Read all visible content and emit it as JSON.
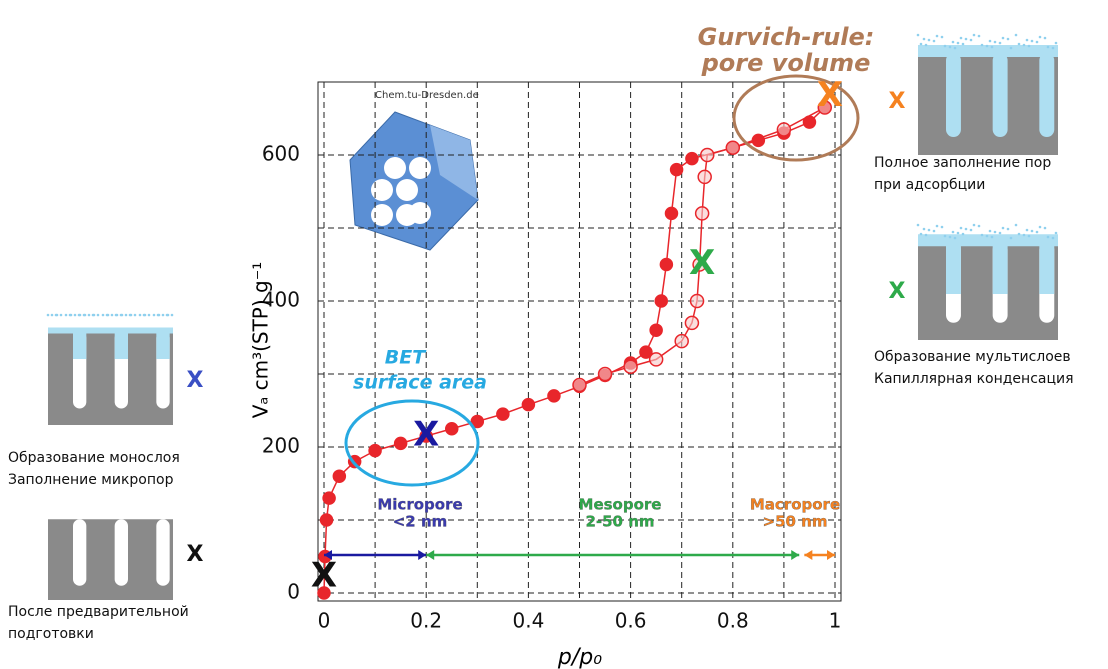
{
  "chart_data": {
    "type": "scatter",
    "xlabel": "p/p₀",
    "ylabel": "Vₐ cm³(STP) g⁻¹",
    "xlim": [
      0,
      1
    ],
    "ylim": [
      0,
      700
    ],
    "xticks": [
      0,
      0.2,
      0.4,
      0.6,
      0.8,
      1
    ],
    "yticks": [
      0,
      200,
      400,
      600
    ],
    "xminor": [
      0.1,
      0.3,
      0.5,
      0.7,
      0.9
    ],
    "yminor": [
      100,
      300,
      500,
      700
    ],
    "grid": true,
    "series": [
      {
        "color": "#e8262b",
        "marker": "filled",
        "x": [
          0,
          0.002,
          0.005,
          0.01,
          0.03,
          0.06,
          0.1,
          0.15,
          0.2,
          0.25,
          0.3,
          0.35,
          0.4,
          0.45,
          0.5,
          0.55,
          0.6,
          0.63,
          0.65,
          0.66,
          0.67,
          0.68,
          0.69,
          0.72,
          0.8,
          0.85,
          0.9,
          0.95,
          0.98
        ],
        "values": [
          0,
          50,
          100,
          130,
          160,
          180,
          195,
          205,
          215,
          225,
          235,
          245,
          258,
          270,
          283,
          298,
          315,
          330,
          360,
          400,
          450,
          520,
          580,
          595,
          610,
          620,
          630,
          645,
          665
        ]
      },
      {
        "color": "#e8262b",
        "marker": "open",
        "x": [
          0.98,
          0.9,
          0.8,
          0.75,
          0.745,
          0.74,
          0.735,
          0.73,
          0.72,
          0.7,
          0.65,
          0.6,
          0.55,
          0.5
        ],
        "values": [
          665,
          635,
          610,
          600,
          570,
          520,
          450,
          400,
          370,
          345,
          320,
          310,
          300,
          285
        ]
      }
    ],
    "markers": [
      {
        "x": 0,
        "y": 22,
        "label": "X",
        "color": "#111111"
      },
      {
        "x": 0.2,
        "y": 215,
        "label": "X",
        "color": "#1a1aa0"
      },
      {
        "x": 0.74,
        "y": 450,
        "label": "X",
        "color": "#2eaa4a"
      },
      {
        "x": 0.99,
        "y": 680,
        "label": "X",
        "color": "#f58220"
      }
    ],
    "annotations": [
      {
        "text": "Gurvich-rule:",
        "color": "#b07b57"
      },
      {
        "text": "pore volume",
        "color": "#b07b57"
      },
      {
        "text": "BET",
        "color": "#27a9e1"
      },
      {
        "text": "surface area",
        "color": "#27a9e1"
      },
      {
        "text": "Micropore",
        "color": "#3a3ab0"
      },
      {
        "text": "<2 nm",
        "color": "#3a3ab0"
      },
      {
        "text": "Mesopore",
        "color": "#2eaa4a"
      },
      {
        "text": "2-50 nm",
        "color": "#2eaa4a"
      },
      {
        "text": "Macropore",
        "color": "#f58220"
      },
      {
        "text": ">50 nm",
        "color": "#f58220"
      },
      {
        "text": "Chem.tu-Dresden.de",
        "color": "#333333"
      }
    ]
  },
  "panels": [
    {
      "marker": "X",
      "color": "#3a4fc4",
      "lines": [
        "Образование монослоя",
        "Заполнение микропор"
      ]
    },
    {
      "marker": "X",
      "color": "#111111",
      "lines": [
        "После предварительной",
        "подготовки"
      ]
    },
    {
      "marker": "X",
      "color": "#f58220",
      "lines": [
        "Полное заполнение пор",
        "при адсорбции"
      ]
    },
    {
      "marker": "X",
      "color": "#2eaa4a",
      "lines": [
        "Образование мультислоев",
        "Капиллярная конденсация"
      ]
    }
  ]
}
